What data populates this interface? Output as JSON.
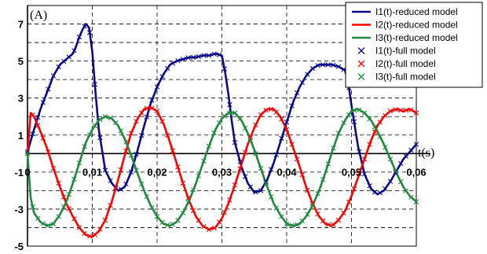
{
  "chart_data": {
    "type": "line",
    "title": "",
    "ylabel": "(A)",
    "xlabel": "t(s)",
    "xlim": [
      0,
      0.06
    ],
    "ylim": [
      -5,
      8
    ],
    "x_ticks": [
      0,
      0.01,
      0.02,
      0.03,
      0.04,
      0.05,
      0.06
    ],
    "x_tick_labels": [
      "0",
      "0,01",
      "0,02",
      "0,03",
      "0,04",
      "0,05",
      "0,06"
    ],
    "y_ticks": [
      -5,
      -3,
      -1,
      1,
      3,
      5,
      7
    ],
    "y_tick_labels": [
      "-5",
      "-3",
      "-1",
      "1",
      "3",
      "5",
      "7"
    ],
    "grid": true,
    "legend_position": "top-right",
    "series": [
      {
        "name": "I1(t)-reduced model",
        "color": "#0a0a8c",
        "style": "line",
        "x": [
          0,
          0.001,
          0.002,
          0.003,
          0.004,
          0.005,
          0.006,
          0.007,
          0.0075,
          0.008,
          0.0085,
          0.009,
          0.0095,
          0.01,
          0.0105,
          0.011,
          0.0115,
          0.012,
          0.013,
          0.014,
          0.015,
          0.016,
          0.017,
          0.018,
          0.019,
          0.02,
          0.021,
          0.022,
          0.023,
          0.024,
          0.025,
          0.026,
          0.027,
          0.028,
          0.029,
          0.03,
          0.0305,
          0.031,
          0.0315,
          0.032,
          0.033,
          0.034,
          0.035,
          0.036,
          0.037,
          0.038,
          0.039,
          0.04,
          0.041,
          0.042,
          0.043,
          0.044,
          0.045,
          0.046,
          0.047,
          0.048,
          0.049,
          0.0495,
          0.05,
          0.051,
          0.052,
          0.053,
          0.054,
          0.055,
          0.056,
          0.057,
          0.058,
          0.059,
          0.06
        ],
        "y": [
          0.1,
          1.3,
          2.4,
          3.3,
          4.2,
          4.8,
          5.1,
          5.4,
          5.8,
          6.3,
          6.7,
          7.0,
          6.8,
          5.5,
          3.3,
          1.3,
          0.2,
          -0.9,
          -1.6,
          -2.0,
          -1.8,
          -1.0,
          0.2,
          1.5,
          2.7,
          3.6,
          4.3,
          4.8,
          5.0,
          5.1,
          5.2,
          5.2,
          5.3,
          5.3,
          5.4,
          5.3,
          4.4,
          3.2,
          1.8,
          0.6,
          -0.7,
          -1.6,
          -2.1,
          -2.0,
          -1.4,
          -0.5,
          0.6,
          1.7,
          2.8,
          3.6,
          4.2,
          4.6,
          4.8,
          4.8,
          4.8,
          4.7,
          4.5,
          3.8,
          2.6,
          0.4,
          -1.1,
          -1.9,
          -2.2,
          -2.0,
          -1.5,
          -0.9,
          -0.3,
          0.1,
          0.5
        ]
      },
      {
        "name": "I2(t)-reduced model",
        "color": "#ff0000",
        "style": "line",
        "x": [
          0,
          0.0005,
          0.001,
          0.002,
          0.003,
          0.004,
          0.005,
          0.006,
          0.007,
          0.008,
          0.009,
          0.01,
          0.011,
          0.012,
          0.013,
          0.014,
          0.015,
          0.016,
          0.017,
          0.018,
          0.019,
          0.02,
          0.021,
          0.022,
          0.023,
          0.024,
          0.025,
          0.026,
          0.027,
          0.028,
          0.029,
          0.03,
          0.031,
          0.032,
          0.033,
          0.034,
          0.035,
          0.036,
          0.037,
          0.038,
          0.039,
          0.04,
          0.041,
          0.042,
          0.043,
          0.044,
          0.045,
          0.046,
          0.047,
          0.048,
          0.049,
          0.05,
          0.051,
          0.052,
          0.053,
          0.054,
          0.055,
          0.056,
          0.057,
          0.058,
          0.059,
          0.06
        ],
        "y": [
          0,
          2.2,
          2.0,
          1.2,
          0.3,
          -0.8,
          -1.8,
          -2.7,
          -3.4,
          -4.0,
          -4.4,
          -4.5,
          -4.2,
          -3.6,
          -2.6,
          -1.4,
          -0.1,
          1.1,
          1.9,
          2.4,
          2.5,
          2.3,
          1.6,
          0.6,
          -0.5,
          -1.6,
          -2.6,
          -3.4,
          -3.9,
          -4.1,
          -4.0,
          -3.5,
          -2.7,
          -1.7,
          -0.6,
          0.5,
          1.4,
          2.1,
          2.4,
          2.4,
          2.0,
          1.3,
          0.3,
          -0.7,
          -1.8,
          -2.7,
          -3.4,
          -3.8,
          -3.9,
          -3.6,
          -3.1,
          -2.3,
          -1.3,
          -0.3,
          0.7,
          1.5,
          2.0,
          2.3,
          2.4,
          2.3,
          2.4,
          2.2
        ]
      },
      {
        "name": "I3(t)-reduced model",
        "color": "#1f8a3e",
        "style": "line",
        "x": [
          0,
          0.0005,
          0.001,
          0.002,
          0.003,
          0.004,
          0.005,
          0.006,
          0.007,
          0.008,
          0.009,
          0.01,
          0.011,
          0.012,
          0.013,
          0.014,
          0.015,
          0.016,
          0.017,
          0.018,
          0.019,
          0.02,
          0.021,
          0.022,
          0.023,
          0.024,
          0.025,
          0.026,
          0.027,
          0.028,
          0.029,
          0.03,
          0.031,
          0.032,
          0.033,
          0.034,
          0.035,
          0.036,
          0.037,
          0.038,
          0.039,
          0.04,
          0.041,
          0.042,
          0.043,
          0.044,
          0.045,
          0.046,
          0.047,
          0.048,
          0.049,
          0.05,
          0.051,
          0.052,
          0.053,
          0.054,
          0.055,
          0.056,
          0.057,
          0.058,
          0.059,
          0.06
        ],
        "y": [
          0,
          -2.4,
          -3.2,
          -3.7,
          -3.9,
          -3.8,
          -3.3,
          -2.6,
          -1.6,
          -0.5,
          0.6,
          1.3,
          1.8,
          2.0,
          1.9,
          1.5,
          0.8,
          -0.1,
          -1.1,
          -2.0,
          -2.8,
          -3.4,
          -3.8,
          -3.9,
          -3.7,
          -3.2,
          -2.5,
          -1.6,
          -0.6,
          0.4,
          1.3,
          1.9,
          2.2,
          2.2,
          1.8,
          1.1,
          0.2,
          -0.8,
          -1.8,
          -2.7,
          -3.3,
          -3.8,
          -3.9,
          -3.8,
          -3.4,
          -2.8,
          -2.0,
          -1.0,
          0.1,
          1.1,
          1.8,
          2.3,
          2.4,
          2.2,
          1.8,
          1.2,
          0.5,
          -0.3,
          -1.1,
          -1.8,
          -2.3,
          -2.6
        ]
      },
      {
        "name": "I1(t)-full model",
        "color": "#0a0a8c",
        "style": "x-marker",
        "derived_from": 0
      },
      {
        "name": "I2(t)-full model",
        "color": "#ff0000",
        "style": "x-marker",
        "derived_from": 1
      },
      {
        "name": "I3(t)-full model",
        "color": "#1f8a3e",
        "style": "x-marker",
        "derived_from": 2
      }
    ]
  }
}
